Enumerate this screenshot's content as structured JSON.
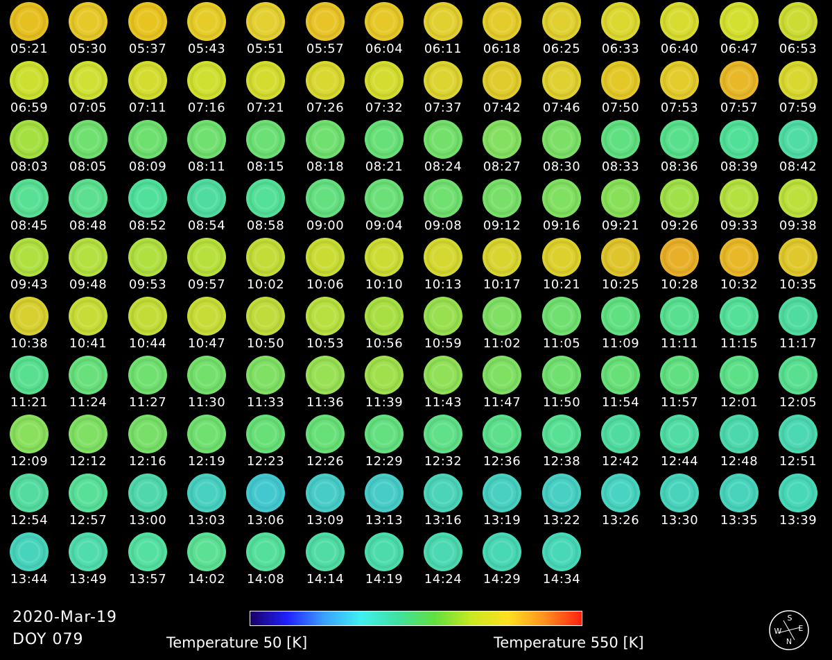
{
  "date": "2020-Mar-19",
  "doy": "DOY 079",
  "colorbar": {
    "min_label": "Temperature 50 [K]",
    "max_label": "Temperature 550 [K]",
    "min_value": 50,
    "max_value": 550,
    "gradient": [
      "#1a0066",
      "#2020ff",
      "#3aa0ff",
      "#40f0f0",
      "#40e0a0",
      "#60e040",
      "#c8e820",
      "#ffe020",
      "#ff9020",
      "#ff2010"
    ]
  },
  "compass": {
    "north": "N",
    "south": "S",
    "east": "E",
    "west": "W"
  },
  "frames": [
    {
      "time": "05:21",
      "color": "#e6c020"
    },
    {
      "time": "05:30",
      "color": "#e6c828"
    },
    {
      "time": "05:37",
      "color": "#e8c420"
    },
    {
      "time": "05:43",
      "color": "#e6cc28"
    },
    {
      "time": "05:51",
      "color": "#e4d030"
    },
    {
      "time": "05:57",
      "color": "#e8c428"
    },
    {
      "time": "06:04",
      "color": "#e6c828"
    },
    {
      "time": "06:11",
      "color": "#e2d030"
    },
    {
      "time": "06:18",
      "color": "#e4cc2c"
    },
    {
      "time": "06:25",
      "color": "#e0d030"
    },
    {
      "time": "06:33",
      "color": "#dcd830"
    },
    {
      "time": "06:40",
      "color": "#d8dc30"
    },
    {
      "time": "06:47",
      "color": "#d4e030"
    },
    {
      "time": "06:53",
      "color": "#ccdc34"
    },
    {
      "time": "06:59",
      "color": "#cce030"
    },
    {
      "time": "07:05",
      "color": "#d0e034"
    },
    {
      "time": "07:11",
      "color": "#d4dc30"
    },
    {
      "time": "07:16",
      "color": "#d0e030"
    },
    {
      "time": "07:21",
      "color": "#d4dc30"
    },
    {
      "time": "07:26",
      "color": "#d8d830"
    },
    {
      "time": "07:32",
      "color": "#d4dc30"
    },
    {
      "time": "07:37",
      "color": "#dcd430"
    },
    {
      "time": "07:42",
      "color": "#e0cc2c"
    },
    {
      "time": "07:46",
      "color": "#e0d030"
    },
    {
      "time": "07:50",
      "color": "#e4c828"
    },
    {
      "time": "07:53",
      "color": "#e4cc2c"
    },
    {
      "time": "07:57",
      "color": "#e8b828"
    },
    {
      "time": "07:59",
      "color": "#d8d830"
    },
    {
      "time": "08:03",
      "color": "#a4e040"
    },
    {
      "time": "08:05",
      "color": "#70e070"
    },
    {
      "time": "08:09",
      "color": "#6ee070"
    },
    {
      "time": "08:11",
      "color": "#70e070"
    },
    {
      "time": "08:15",
      "color": "#6ce074"
    },
    {
      "time": "08:18",
      "color": "#70e070"
    },
    {
      "time": "08:21",
      "color": "#68e078"
    },
    {
      "time": "08:24",
      "color": "#74e06c"
    },
    {
      "time": "08:27",
      "color": "#84e060"
    },
    {
      "time": "08:30",
      "color": "#7ce066"
    },
    {
      "time": "08:33",
      "color": "#60e080"
    },
    {
      "time": "08:36",
      "color": "#58e08c"
    },
    {
      "time": "08:39",
      "color": "#50e098"
    },
    {
      "time": "08:42",
      "color": "#50dca4"
    },
    {
      "time": "08:45",
      "color": "#58e094"
    },
    {
      "time": "08:48",
      "color": "#5ce090"
    },
    {
      "time": "08:52",
      "color": "#50e09c"
    },
    {
      "time": "08:54",
      "color": "#50dca0"
    },
    {
      "time": "08:58",
      "color": "#54e098"
    },
    {
      "time": "09:00",
      "color": "#64e080"
    },
    {
      "time": "09:04",
      "color": "#6ce078"
    },
    {
      "time": "09:08",
      "color": "#70e070"
    },
    {
      "time": "09:12",
      "color": "#78e068"
    },
    {
      "time": "09:16",
      "color": "#80e060"
    },
    {
      "time": "09:21",
      "color": "#88e058"
    },
    {
      "time": "09:26",
      "color": "#a0e048"
    },
    {
      "time": "09:33",
      "color": "#b4e040"
    },
    {
      "time": "09:38",
      "color": "#bce03c"
    },
    {
      "time": "09:43",
      "color": "#b0e040"
    },
    {
      "time": "09:48",
      "color": "#b4e040"
    },
    {
      "time": "09:53",
      "color": "#b0e040"
    },
    {
      "time": "09:57",
      "color": "#b8e03c"
    },
    {
      "time": "10:02",
      "color": "#c4dc38"
    },
    {
      "time": "10:06",
      "color": "#c8dc34"
    },
    {
      "time": "10:10",
      "color": "#ccdc34"
    },
    {
      "time": "10:13",
      "color": "#d4d830"
    },
    {
      "time": "10:17",
      "color": "#d8d430"
    },
    {
      "time": "10:21",
      "color": "#dcd02c"
    },
    {
      "time": "10:25",
      "color": "#e0c42c"
    },
    {
      "time": "10:28",
      "color": "#e8b028"
    },
    {
      "time": "10:32",
      "color": "#e8b828"
    },
    {
      "time": "10:35",
      "color": "#e0c82c"
    },
    {
      "time": "10:38",
      "color": "#d8d030"
    },
    {
      "time": "10:41",
      "color": "#c8dc38"
    },
    {
      "time": "10:44",
      "color": "#c4dc38"
    },
    {
      "time": "10:47",
      "color": "#c8dc38"
    },
    {
      "time": "10:50",
      "color": "#c0dc3c"
    },
    {
      "time": "10:53",
      "color": "#b8e040"
    },
    {
      "time": "10:56",
      "color": "#a8e044"
    },
    {
      "time": "10:59",
      "color": "#98e050"
    },
    {
      "time": "11:02",
      "color": "#80e064"
    },
    {
      "time": "11:05",
      "color": "#70e070"
    },
    {
      "time": "11:09",
      "color": "#60e080"
    },
    {
      "time": "11:11",
      "color": "#58e090"
    },
    {
      "time": "11:15",
      "color": "#54e098"
    },
    {
      "time": "11:17",
      "color": "#50dca0"
    },
    {
      "time": "11:21",
      "color": "#58e090"
    },
    {
      "time": "11:24",
      "color": "#68e07c"
    },
    {
      "time": "11:27",
      "color": "#70e070"
    },
    {
      "time": "11:30",
      "color": "#74e06c"
    },
    {
      "time": "11:33",
      "color": "#80e064"
    },
    {
      "time": "11:36",
      "color": "#98e054"
    },
    {
      "time": "11:39",
      "color": "#a0e04c"
    },
    {
      "time": "11:43",
      "color": "#90e058"
    },
    {
      "time": "11:47",
      "color": "#80e064"
    },
    {
      "time": "11:50",
      "color": "#70e070"
    },
    {
      "time": "11:54",
      "color": "#68e078"
    },
    {
      "time": "11:57",
      "color": "#60e080"
    },
    {
      "time": "12:01",
      "color": "#5ce088"
    },
    {
      "time": "12:05",
      "color": "#58e090"
    },
    {
      "time": "12:09",
      "color": "#88e05c"
    },
    {
      "time": "12:12",
      "color": "#80e064"
    },
    {
      "time": "12:16",
      "color": "#78e068"
    },
    {
      "time": "12:19",
      "color": "#70e070"
    },
    {
      "time": "12:23",
      "color": "#68e078"
    },
    {
      "time": "12:26",
      "color": "#68e078"
    },
    {
      "time": "12:29",
      "color": "#64e080"
    },
    {
      "time": "12:32",
      "color": "#60e088"
    },
    {
      "time": "12:36",
      "color": "#5ce08c"
    },
    {
      "time": "12:38",
      "color": "#58e094"
    },
    {
      "time": "12:42",
      "color": "#50dca0"
    },
    {
      "time": "12:44",
      "color": "#50dca4"
    },
    {
      "time": "12:48",
      "color": "#4cd8ac"
    },
    {
      "time": "12:51",
      "color": "#4cd8b0"
    },
    {
      "time": "12:54",
      "color": "#54dca0"
    },
    {
      "time": "12:57",
      "color": "#58e098"
    },
    {
      "time": "13:00",
      "color": "#50d8ac"
    },
    {
      "time": "13:03",
      "color": "#48d0c0"
    },
    {
      "time": "13:06",
      "color": "#44c8d0"
    },
    {
      "time": "13:09",
      "color": "#48ccc8"
    },
    {
      "time": "13:13",
      "color": "#48ccc8"
    },
    {
      "time": "13:16",
      "color": "#4cd4b8"
    },
    {
      "time": "13:19",
      "color": "#48d0c0"
    },
    {
      "time": "13:22",
      "color": "#48d0c4"
    },
    {
      "time": "13:26",
      "color": "#48d4c0"
    },
    {
      "time": "13:30",
      "color": "#48d4bc"
    },
    {
      "time": "13:35",
      "color": "#48d4bc"
    },
    {
      "time": "13:39",
      "color": "#48d8b8"
    },
    {
      "time": "13:44",
      "color": "#48d4bc"
    },
    {
      "time": "13:49",
      "color": "#50dcac"
    },
    {
      "time": "13:57",
      "color": "#54e0a0"
    },
    {
      "time": "14:02",
      "color": "#5ce094"
    },
    {
      "time": "14:08",
      "color": "#54e09c"
    },
    {
      "time": "14:14",
      "color": "#50dca4"
    },
    {
      "time": "14:19",
      "color": "#4cdcac"
    },
    {
      "time": "14:24",
      "color": "#4cd8b0"
    },
    {
      "time": "14:29",
      "color": "#48d8b4"
    },
    {
      "time": "14:34",
      "color": "#48d8b8"
    }
  ]
}
